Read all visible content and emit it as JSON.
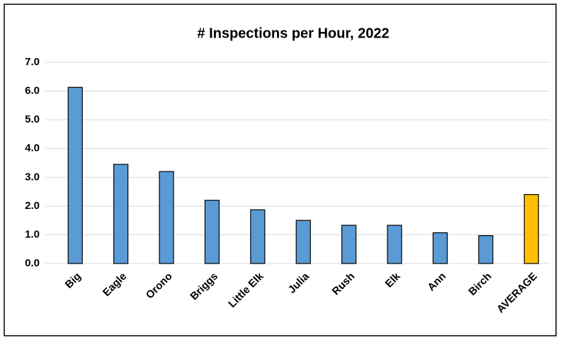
{
  "chart_data": {
    "type": "bar",
    "title": "# Inspections per Hour, 2022",
    "categories": [
      "Big",
      "Eagle",
      "Orono",
      "Briggs",
      "Little Elk",
      "Julia",
      "Rush",
      "Elk",
      "Ann",
      "Birch",
      "AVERAGE"
    ],
    "values": [
      6.13,
      3.45,
      3.2,
      2.2,
      1.87,
      1.5,
      1.33,
      1.33,
      1.07,
      0.97,
      2.4
    ],
    "colors": [
      "#5b9bd5",
      "#5b9bd5",
      "#5b9bd5",
      "#5b9bd5",
      "#5b9bd5",
      "#5b9bd5",
      "#5b9bd5",
      "#5b9bd5",
      "#5b9bd5",
      "#5b9bd5",
      "#ffc000"
    ],
    "ylim": [
      0,
      7
    ],
    "yticks": [
      {
        "value": 0,
        "label": "0.0"
      },
      {
        "value": 1,
        "label": "1.0"
      },
      {
        "value": 2,
        "label": "2.0"
      },
      {
        "value": 3,
        "label": "3.0"
      },
      {
        "value": 4,
        "label": "4.0"
      },
      {
        "value": 5,
        "label": "5.0"
      },
      {
        "value": 6,
        "label": "6.0"
      },
      {
        "value": 7,
        "label": "7.0"
      }
    ],
    "grid": true
  }
}
